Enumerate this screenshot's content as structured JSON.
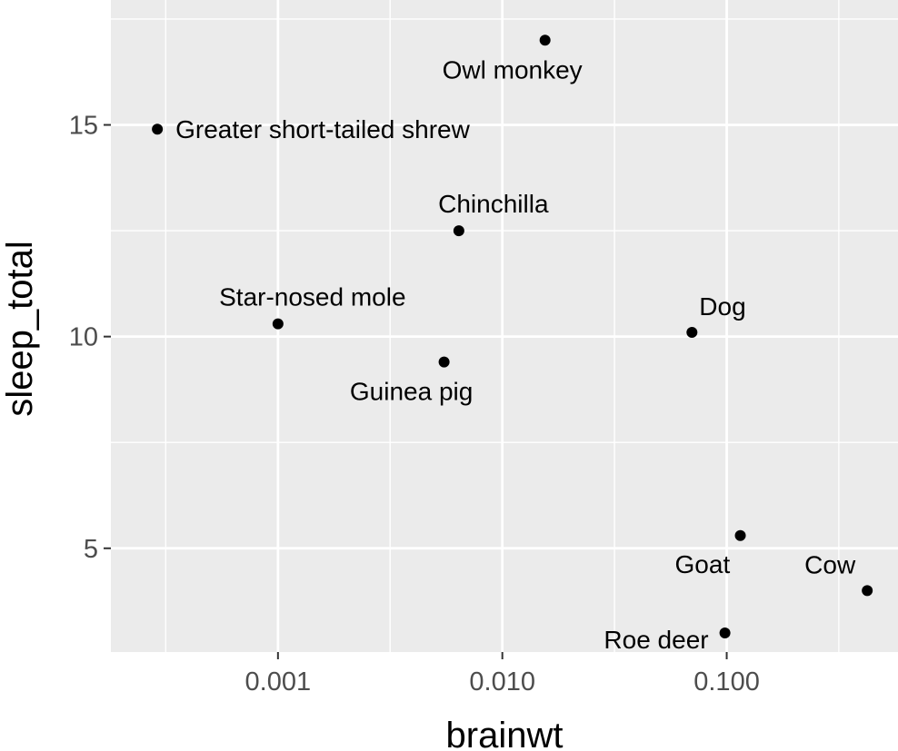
{
  "chart_data": {
    "type": "scatter",
    "xlabel": "brainwt",
    "ylabel": "sleep_total",
    "x_scale": "log10",
    "xlim": [
      0.00018,
      0.58
    ],
    "ylim": [
      2.55,
      17.95
    ],
    "grid": true,
    "x_ticks": [
      {
        "value": 0.001,
        "label": "0.001"
      },
      {
        "value": 0.01,
        "label": "0.010"
      },
      {
        "value": 0.1,
        "label": "0.100"
      }
    ],
    "x_minor": [
      0.000316,
      0.00316,
      0.0316,
      0.316
    ],
    "y_ticks": [
      {
        "value": 5,
        "label": "5"
      },
      {
        "value": 10,
        "label": "10"
      },
      {
        "value": 15,
        "label": "15"
      }
    ],
    "y_minor": [
      2.5,
      7.5,
      12.5,
      17.5
    ],
    "points": [
      {
        "name": "Owl monkey",
        "brainwt": 0.0155,
        "sleep_total": 17.0,
        "label_pos": "below"
      },
      {
        "name": "Greater short-tailed shrew",
        "brainwt": 0.00029,
        "sleep_total": 14.9,
        "label_pos": "right"
      },
      {
        "name": "Chinchilla",
        "brainwt": 0.0064,
        "sleep_total": 12.5,
        "label_pos": "above"
      },
      {
        "name": "Star-nosed mole",
        "brainwt": 0.001,
        "sleep_total": 10.3,
        "label_pos": "above"
      },
      {
        "name": "Dog",
        "brainwt": 0.07,
        "sleep_total": 10.1,
        "label_pos": "above-right"
      },
      {
        "name": "Guinea pig",
        "brainwt": 0.0055,
        "sleep_total": 9.4,
        "label_pos": "below"
      },
      {
        "name": "Goat",
        "brainwt": 0.115,
        "sleep_total": 5.3,
        "label_pos": "below-left"
      },
      {
        "name": "Cow",
        "brainwt": 0.423,
        "sleep_total": 4.0,
        "label_pos": "above-left"
      },
      {
        "name": "Roe deer",
        "brainwt": 0.0982,
        "sleep_total": 3.0,
        "label_pos": "left"
      }
    ]
  }
}
